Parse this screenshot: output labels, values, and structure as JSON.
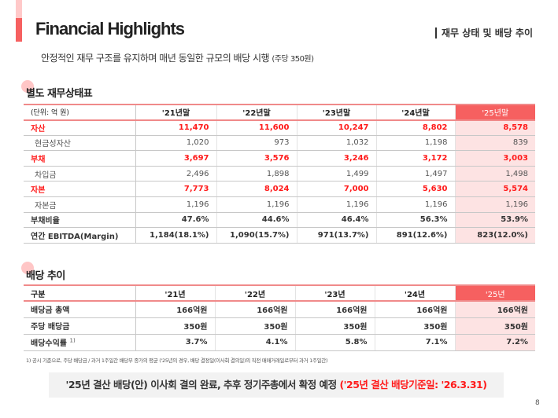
{
  "header": {
    "title": "Financial Highlights",
    "tag": "재무 상태 및 배당 추이",
    "subtitle": "안정적인 재무 구조를 유지하며 매년 동일한 규모의 배당 시행",
    "subtitle_note": "(주당 350원)"
  },
  "balance": {
    "title": "별도 재무상태표",
    "unit": "(단위: 억 원)",
    "columns": [
      "'21년말",
      "'22년말",
      "'23년말",
      "'24년말",
      "'25년말"
    ],
    "rows": [
      {
        "label": "자산",
        "values": [
          "11,470",
          "11,600",
          "10,247",
          "8,802",
          "8,578"
        ],
        "style": "main"
      },
      {
        "label": "현금성자산",
        "values": [
          "1,020",
          "973",
          "1,032",
          "1,198",
          "839"
        ],
        "style": "sub"
      },
      {
        "label": "부채",
        "values": [
          "3,697",
          "3,576",
          "3,246",
          "3,172",
          "3,003"
        ],
        "style": "main"
      },
      {
        "label": "차입금",
        "values": [
          "2,496",
          "1,898",
          "1,499",
          "1,497",
          "1,498"
        ],
        "style": "sub"
      },
      {
        "label": "자본",
        "values": [
          "7,773",
          "8,024",
          "7,000",
          "5,630",
          "5,574"
        ],
        "style": "main"
      },
      {
        "label": "자본금",
        "values": [
          "1,196",
          "1,196",
          "1,196",
          "1,196",
          "1,196"
        ],
        "style": "sub"
      },
      {
        "label": "부채비율",
        "values": [
          "47.6%",
          "44.6%",
          "46.4%",
          "56.3%",
          "53.9%"
        ],
        "style": "bold"
      },
      {
        "label": "연간 EBITDA(Margin)",
        "values": [
          "1,184(18.1%)",
          "1,090(15.7%)",
          "971(13.7%)",
          "891(12.6%)",
          "823(12.0%)"
        ],
        "style": "bold"
      }
    ]
  },
  "dividend": {
    "title": "배당 추이",
    "header": "구분",
    "columns": [
      "'21년",
      "'22년",
      "'23년",
      "'24년",
      "'25년"
    ],
    "rows": [
      {
        "label": "배당금 총액",
        "values": [
          "166억원",
          "166억원",
          "166억원",
          "166억원",
          "166억원"
        ]
      },
      {
        "label": "주당 배당금",
        "values": [
          "350원",
          "350원",
          "350원",
          "350원",
          "350원"
        ]
      },
      {
        "label": "배당수익률",
        "sup": "1)",
        "values": [
          "3.7%",
          "4.1%",
          "5.8%",
          "7.1%",
          "7.2%"
        ]
      }
    ]
  },
  "footnote": "1)   공시 기준으로, 주당 배당금 / 과거 1주일간 배당부 종가의 평균 ('25년의 경우, 배당 결정일(이사회 결의일)의 직전 매매거래일로부터 과거 1주일간)",
  "bottom": {
    "text": "'25년 결산 배당(안) 이사회 결의 완료, 추후 정기주총에서 확정 예정 ",
    "highlight": "('25년 결산 배당기준일: '26.3.31)"
  },
  "page_number": "8",
  "colors": {
    "accent": "#f66060",
    "highlight_bg": "#fde3e3",
    "red_text": "#ff1a1a"
  }
}
